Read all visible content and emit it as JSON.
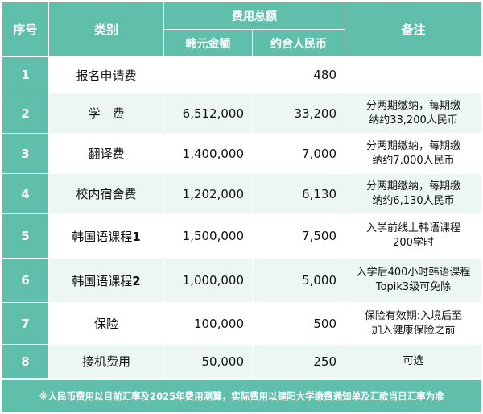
{
  "header": {
    "index": "序号",
    "category": "类别",
    "total": "费用总额",
    "krw": "韩元金额",
    "cny": "约合人民币",
    "note": "备注"
  },
  "rows": [
    {
      "no": "1",
      "name": "报名申请费",
      "name_suffix": "",
      "krw": "",
      "cny": "480",
      "note": [
        "",
        ""
      ]
    },
    {
      "no": "2",
      "name": "学　费",
      "name_suffix": "",
      "krw": "6,512,000",
      "cny": "33,200",
      "note": [
        "分两期缴纳，每期缴",
        "纳约33,200人民币"
      ]
    },
    {
      "no": "3",
      "name": "翻译费",
      "name_suffix": "",
      "krw": "1,400,000",
      "cny": "7,000",
      "note": [
        "分两期缴纳，每期缴",
        "纳约7,000人民币"
      ]
    },
    {
      "no": "4",
      "name": "校内宿舍费",
      "name_suffix": "",
      "krw": "1,202,000",
      "cny": "6,130",
      "note": [
        "分两期缴纳，每期缴",
        "纳约6,130人民币"
      ]
    },
    {
      "no": "5",
      "name": "韩国语课程",
      "name_suffix": "1",
      "krw": "1,500,000",
      "cny": "7,500",
      "note": [
        "入学前线上韩语课程",
        "200学时"
      ]
    },
    {
      "no": "6",
      "name": "韩国语课程",
      "name_suffix": "2",
      "krw": "1,000,000",
      "cny": "5,000",
      "note": [
        "入学后400小时韩语课程",
        "Topik3级可免除"
      ]
    },
    {
      "no": "7",
      "name": "保险",
      "name_suffix": "",
      "krw": "100,000",
      "cny": "500",
      "note": [
        "保险有效期:入境后至",
        "加入健康保险之前"
      ]
    },
    {
      "no": "8",
      "name": "接机费用",
      "name_suffix": "",
      "krw": "50,000",
      "cny": "250",
      "note": [
        "可选",
        ""
      ]
    }
  ],
  "footer": "※人民币费用以目前汇率及2025年费用测算，实际费用以建阳大学缴费通知单及汇款当日汇率为准",
  "colors": {
    "header_bg": "#5fbfaa",
    "alt_row_bg": "#ecf7f3"
  }
}
